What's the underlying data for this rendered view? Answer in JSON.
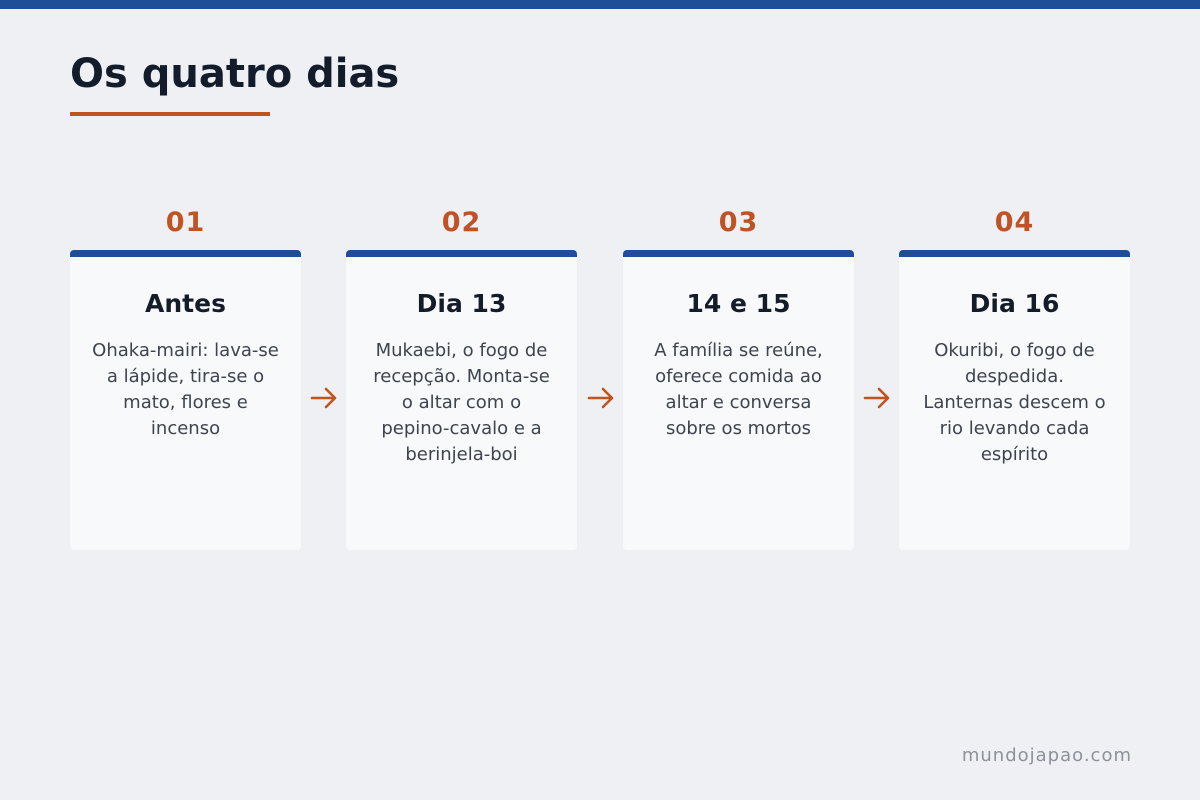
{
  "title": "Os quatro dias",
  "steps": [
    {
      "number": "01",
      "title": "Antes",
      "text": "Ohaka-mairi: lava-se a lápide, tira-se o mato, flores e incenso"
    },
    {
      "number": "02",
      "title": "Dia 13",
      "text": "Mukaebi, o fogo de recepção. Monta-se o altar com o pepino-cavalo e a berinjela-boi"
    },
    {
      "number": "03",
      "title": "14 e 15",
      "text": "A família se reúne, oferece comida ao altar e conversa sobre os mortos"
    },
    {
      "number": "04",
      "title": "Dia 16",
      "text": "Okuribi, o fogo de despedida. Lanternas descem o rio levando cada espírito"
    }
  ],
  "footer": "mundojapao.com",
  "colors": {
    "accent_blue": "#1f4e99",
    "accent_orange": "#c0541f",
    "background": "#eef0f4",
    "card": "#f8f9fb"
  },
  "icons": {
    "connector": "arrow-right-icon"
  }
}
